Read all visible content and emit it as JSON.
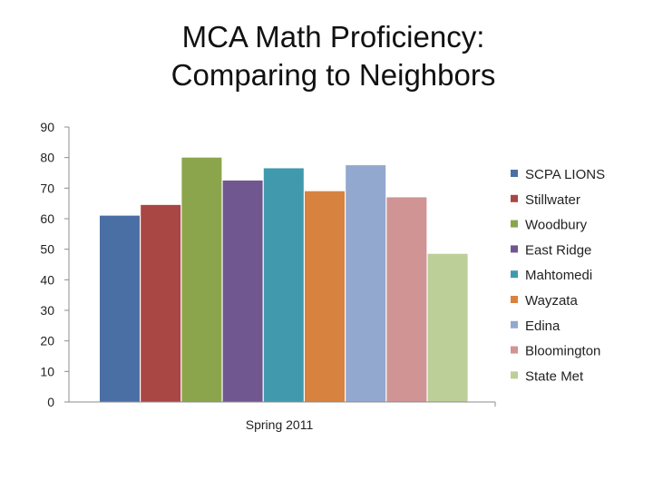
{
  "title": {
    "line1": "MCA Math Proficiency:",
    "line2": "Comparing to Neighbors"
  },
  "chart_data": {
    "type": "bar",
    "title": "MCA Math Proficiency: Comparing to Neighbors",
    "categories": [
      "Spring 2011"
    ],
    "series": [
      {
        "name": "SCPA LIONS",
        "values": [
          61
        ],
        "color": "#4a6fa5"
      },
      {
        "name": "Stillwater",
        "values": [
          64.5
        ],
        "color": "#a94744"
      },
      {
        "name": "Woodbury",
        "values": [
          80
        ],
        "color": "#8aa54b"
      },
      {
        "name": "East Ridge",
        "values": [
          72.5
        ],
        "color": "#71578f"
      },
      {
        "name": "Mahtomedi",
        "values": [
          76.5
        ],
        "color": "#4199ad"
      },
      {
        "name": "Wayzata",
        "values": [
          69
        ],
        "color": "#d8823f"
      },
      {
        "name": "Edina",
        "values": [
          77.5
        ],
        "color": "#93a8ce"
      },
      {
        "name": "Bloomington",
        "values": [
          67
        ],
        "color": "#d09494"
      },
      {
        "name": "State Met",
        "values": [
          48.5
        ],
        "color": "#bccf98"
      }
    ],
    "xlabel": "",
    "ylabel": "",
    "ylim": [
      0,
      90
    ],
    "yticks": [
      "0",
      "10",
      "20",
      "30",
      "40",
      "50",
      "60",
      "70",
      "80",
      "90"
    ],
    "grid": false,
    "legend": "right"
  }
}
